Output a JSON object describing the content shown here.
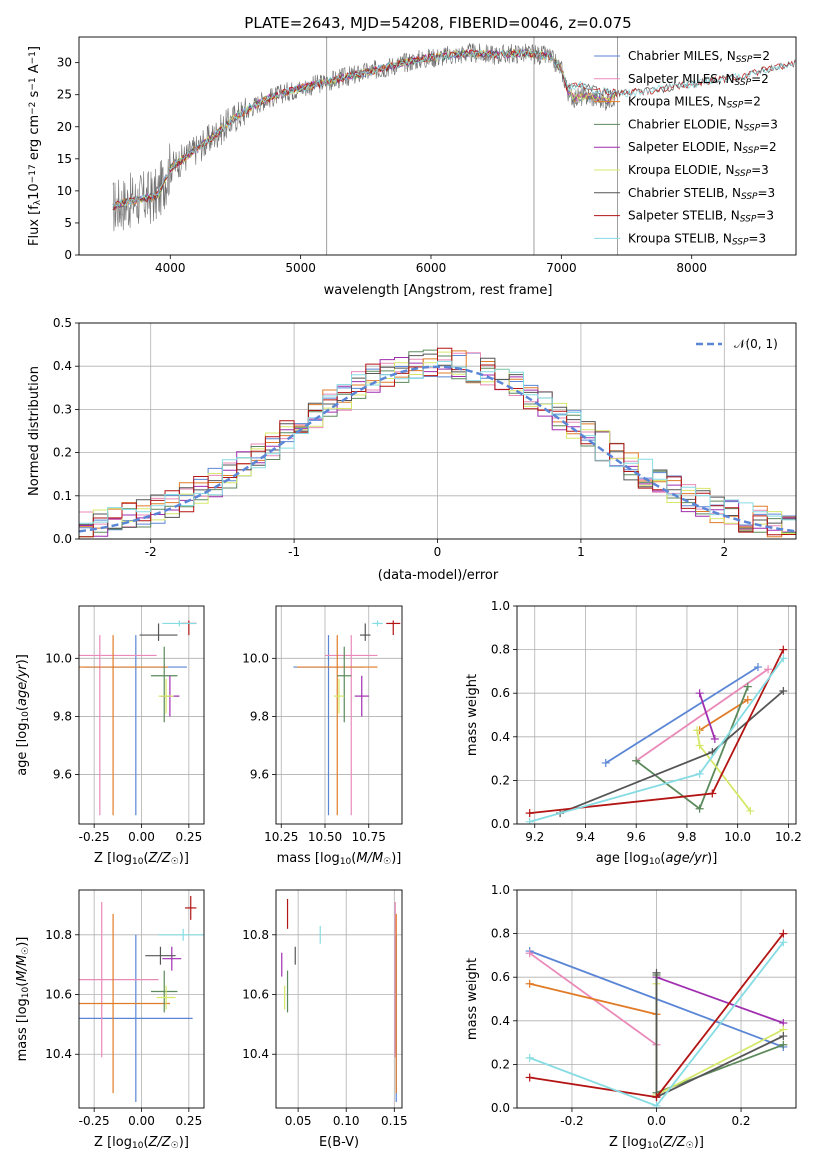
{
  "figure": {
    "title": "PLATE=2643, MJD=54208, FIBERID=0046, z=0.075",
    "colors": {
      "chabrier_miles": "#5b86d6",
      "salpeter_miles": "#e98ab9",
      "kroupa_miles": "#e07b28",
      "chabrier_elodie": "#5c8a5c",
      "salpeter_elodie": "#a02fb0",
      "kroupa_elodie": "#d6e86a",
      "chabrier_stelib": "#555555",
      "salpeter_stelib": "#b31414",
      "kroupa_stelib": "#86dce3",
      "gaussian": "#5b86d6"
    }
  },
  "legend_top": [
    "Chabrier MILES, N_SSP=2",
    "Salpeter MILES, N_SSP=2",
    "Kroupa MILES, N_SSP=2",
    "Chabrier ELODIE, N_SSP=3",
    "Salpeter ELODIE, N_SSP=2",
    "Kroupa ELODIE, N_SSP=3",
    "Chabrier STELIB, N_SSP=3",
    "Salpeter STELIB, N_SSP=3",
    "Kroupa STELIB, N_SSP=3"
  ],
  "legend_hist": "𝒩(0, 1)",
  "chart_data": [
    {
      "type": "line",
      "title": "PLATE=2643, MJD=54208, FIBERID=0046, z=0.075",
      "xlabel": "wavelength [Angstrom, rest frame]",
      "ylabel": "Flux [f_λ 10^-17 erg cm^-2 s^-1 A^-1]",
      "xlim": [
        3300,
        8800
      ],
      "ylim": [
        0,
        34
      ],
      "xticks": [
        4000,
        5000,
        6000,
        7000,
        8000
      ],
      "yticks": [
        0,
        5,
        10,
        15,
        20,
        25,
        30
      ],
      "spectrum_anchors": {
        "x": [
          3560,
          3650,
          3800,
          3900,
          4000,
          4100,
          4200,
          4300,
          4500,
          4700,
          4900,
          5100,
          5300,
          5500,
          5700,
          5900,
          6100,
          6300,
          6500,
          6700,
          6900,
          7000,
          7050,
          7100,
          7200,
          7350,
          7420
        ],
        "y": [
          7.5,
          8.2,
          8.8,
          9.2,
          13.5,
          15.0,
          16.5,
          18.0,
          21.5,
          24.0,
          25.5,
          26.5,
          27.5,
          28.5,
          29.5,
          30.5,
          31.0,
          31.5,
          31.2,
          31.5,
          31.0,
          29.0,
          25.5,
          24.5,
          24.8,
          24.0,
          25.0
        ]
      },
      "model_tail_upper": {
        "x": [
          7050,
          7150,
          7300,
          7500,
          7800,
          8100,
          8400,
          8800
        ],
        "y": [
          26.0,
          26.5,
          25.5,
          25.2,
          26.0,
          27.0,
          28.0,
          30.0
        ]
      },
      "vertical_spikes": [
        5200,
        6790,
        7430
      ],
      "series": [
        "Chabrier MILES, N_SSP=2",
        "Salpeter MILES, N_SSP=2",
        "Kroupa MILES, N_SSP=2",
        "Chabrier ELODIE, N_SSP=3",
        "Salpeter ELODIE, N_SSP=2",
        "Kroupa ELODIE, N_SSP=3",
        "Chabrier STELIB, N_SSP=3",
        "Salpeter STELIB, N_SSP=3",
        "Kroupa STELIB, N_SSP=3"
      ]
    },
    {
      "type": "bar",
      "xlabel": "(data-model)/error",
      "ylabel": "Normed distribution",
      "xlim": [
        -2.5,
        2.5
      ],
      "ylim": [
        0,
        0.5
      ],
      "xticks": [
        -2,
        -1,
        0,
        1,
        2
      ],
      "yticks": [
        0.0,
        0.1,
        0.2,
        0.3,
        0.4,
        0.5
      ],
      "bin_width": 0.1,
      "gaussian": {
        "mu": 0,
        "sigma": 1,
        "label": "𝒩(0, 1)"
      },
      "histograms": "nine step histograms (one per model) scattering around N(0,1)"
    },
    {
      "type": "scatter",
      "xlabel": "Z [log10(Z/Z☉)]",
      "ylabel": "age  [log10(age/yr)]",
      "xlim": [
        -0.33,
        0.33
      ],
      "ylim": [
        9.43,
        10.18
      ],
      "xticks": [
        -0.25,
        0.0,
        0.25
      ],
      "yticks": [
        9.6,
        9.8,
        10.0
      ],
      "points": [
        {
          "model": "Chabrier MILES",
          "x": -0.03,
          "y": 9.97,
          "xerr": 0.27,
          "yerr_lo": 0.51,
          "yerr_hi": 0.11
        },
        {
          "model": "Salpeter MILES",
          "x": -0.22,
          "y": 10.01,
          "xerr": 0.3,
          "yerr_lo": 0.55,
          "yerr_hi": 0.07
        },
        {
          "model": "Kroupa MILES",
          "x": -0.15,
          "y": 9.97,
          "xerr": 0.29,
          "yerr_lo": 0.51,
          "yerr_hi": 0.11
        },
        {
          "model": "Chabrier ELODIE",
          "x": 0.12,
          "y": 9.94,
          "xerr": 0.07,
          "yerr_lo": 0.16,
          "yerr_hi": 0.1
        },
        {
          "model": "Salpeter ELODIE",
          "x": 0.15,
          "y": 9.87,
          "xerr": 0.05,
          "yerr_lo": 0.07,
          "yerr_hi": 0.07
        },
        {
          "model": "Kroupa ELODIE",
          "x": 0.13,
          "y": 9.87,
          "xerr": 0.04,
          "yerr_lo": 0.06,
          "yerr_hi": 0.06
        },
        {
          "model": "Chabrier STELIB",
          "x": 0.09,
          "y": 10.08,
          "xerr": 0.1,
          "yerr_lo": 0.02,
          "yerr_hi": 0.04
        },
        {
          "model": "Salpeter STELIB",
          "x": 0.25,
          "y": 10.12,
          "xerr": 0.04,
          "yerr_lo": 0.04,
          "yerr_hi": 0.01
        },
        {
          "model": "Kroupa STELIB",
          "x": 0.2,
          "y": 10.12,
          "xerr": 0.09,
          "yerr_lo": 0.01,
          "yerr_hi": 0.01
        }
      ]
    },
    {
      "type": "scatter",
      "xlabel": "mass [log10(M/M☉)]",
      "xlim": [
        10.22,
        10.94
      ],
      "ylim": [
        9.43,
        10.18
      ],
      "xticks": [
        10.25,
        10.5,
        10.75
      ],
      "yticks": [
        9.6,
        9.8,
        10.0
      ],
      "points": [
        {
          "model": "Chabrier MILES",
          "x": 10.52,
          "y": 9.97,
          "xerr": 0.2,
          "yerr_lo": 0.51,
          "yerr_hi": 0.11
        },
        {
          "model": "Salpeter MILES",
          "x": 10.65,
          "y": 10.01,
          "xerr": 0.15,
          "yerr_lo": 0.55,
          "yerr_hi": 0.07
        },
        {
          "model": "Kroupa MILES",
          "x": 10.57,
          "y": 9.97,
          "xerr": 0.23,
          "yerr_lo": 0.51,
          "yerr_hi": 0.11
        },
        {
          "model": "Chabrier ELODIE",
          "x": 10.61,
          "y": 9.94,
          "xerr": 0.04,
          "yerr_lo": 0.16,
          "yerr_hi": 0.1
        },
        {
          "model": "Salpeter ELODIE",
          "x": 10.71,
          "y": 9.87,
          "xerr": 0.04,
          "yerr_lo": 0.07,
          "yerr_hi": 0.07
        },
        {
          "model": "Kroupa ELODIE",
          "x": 10.58,
          "y": 9.87,
          "xerr": 0.03,
          "yerr_lo": 0.06,
          "yerr_hi": 0.06
        },
        {
          "model": "Chabrier STELIB",
          "x": 10.73,
          "y": 10.08,
          "xerr": 0.03,
          "yerr_lo": 0.02,
          "yerr_hi": 0.04
        },
        {
          "model": "Salpeter STELIB",
          "x": 10.89,
          "y": 10.12,
          "xerr": 0.04,
          "yerr_lo": 0.04,
          "yerr_hi": 0.01
        },
        {
          "model": "Kroupa STELIB",
          "x": 10.8,
          "y": 10.12,
          "xerr": 0.03,
          "yerr_lo": 0.01,
          "yerr_hi": 0.01
        }
      ]
    },
    {
      "type": "line",
      "xlabel": "age  [log10(age/yr)]",
      "ylabel": "mass weight",
      "xlim": [
        9.13,
        10.23
      ],
      "ylim": [
        0,
        1
      ],
      "xticks": [
        9.2,
        9.4,
        9.6,
        9.8,
        10.0,
        10.2
      ],
      "yticks": [
        0.0,
        0.2,
        0.4,
        0.6,
        0.8,
        1.0
      ],
      "series": [
        {
          "model": "Chabrier MILES",
          "x": [
            9.48,
            10.08
          ],
          "y": [
            0.28,
            0.72
          ]
        },
        {
          "model": "Salpeter MILES",
          "x": [
            9.6,
            10.12
          ],
          "y": [
            0.29,
            0.71
          ]
        },
        {
          "model": "Kroupa MILES",
          "x": [
            9.85,
            10.04
          ],
          "y": [
            0.43,
            0.57
          ]
        },
        {
          "model": "Chabrier ELODIE",
          "x": [
            9.6,
            9.85,
            10.04
          ],
          "y": [
            0.29,
            0.07,
            0.63
          ]
        },
        {
          "model": "Salpeter ELODIE",
          "x": [
            9.85,
            9.91
          ],
          "y": [
            0.6,
            0.39
          ]
        },
        {
          "model": "Kroupa ELODIE",
          "x": [
            9.84,
            9.85,
            10.05
          ],
          "y": [
            0.43,
            0.36,
            0.06
          ]
        },
        {
          "model": "Chabrier STELIB",
          "x": [
            9.3,
            9.9,
            10.18
          ],
          "y": [
            0.05,
            0.33,
            0.61
          ]
        },
        {
          "model": "Salpeter STELIB",
          "x": [
            9.18,
            9.9,
            10.18
          ],
          "y": [
            0.05,
            0.14,
            0.8
          ]
        },
        {
          "model": "Kroupa STELIB",
          "x": [
            9.18,
            9.85,
            10.18
          ],
          "y": [
            0.01,
            0.23,
            0.76
          ]
        }
      ]
    },
    {
      "type": "scatter",
      "xlabel": "Z [log10(Z/Z☉)]",
      "ylabel": "mass [log10(M/M☉)]",
      "xlim": [
        -0.33,
        0.33
      ],
      "ylim": [
        10.22,
        10.95
      ],
      "xticks": [
        -0.25,
        0.0,
        0.25
      ],
      "yticks": [
        10.4,
        10.6,
        10.8
      ],
      "points": [
        {
          "model": "Chabrier MILES",
          "x": -0.03,
          "y": 10.52,
          "xerr": 0.3,
          "yerr": 0.28
        },
        {
          "model": "Salpeter MILES",
          "x": -0.21,
          "y": 10.65,
          "xerr": 0.3,
          "yerr": 0.26
        },
        {
          "model": "Kroupa MILES",
          "x": -0.15,
          "y": 10.57,
          "xerr": 0.3,
          "yerr": 0.3
        },
        {
          "model": "Chabrier ELODIE",
          "x": 0.12,
          "y": 10.61,
          "xerr": 0.07,
          "yerr": 0.07
        },
        {
          "model": "Salpeter ELODIE",
          "x": 0.16,
          "y": 10.72,
          "xerr": 0.05,
          "yerr": 0.04
        },
        {
          "model": "Kroupa ELODIE",
          "x": 0.13,
          "y": 10.59,
          "xerr": 0.05,
          "yerr": 0.04
        },
        {
          "model": "Chabrier STELIB",
          "x": 0.1,
          "y": 10.73,
          "xerr": 0.08,
          "yerr": 0.03
        },
        {
          "model": "Salpeter STELIB",
          "x": 0.26,
          "y": 10.89,
          "xerr": 0.03,
          "yerr": 0.04
        },
        {
          "model": "Kroupa STELIB",
          "x": 0.22,
          "y": 10.8,
          "xerr": 0.13,
          "yerr": 0.02
        }
      ]
    },
    {
      "type": "scatter",
      "xlabel": "E(B-V)",
      "xlim": [
        0.027,
        0.158
      ],
      "ylim": [
        10.22,
        10.95
      ],
      "xticks": [
        0.05,
        0.1,
        0.15
      ],
      "yticks": [
        10.4,
        10.6,
        10.8
      ],
      "points": [
        {
          "model": "Chabrier MILES",
          "x": 0.152,
          "y": 10.52,
          "yerr": 0.28
        },
        {
          "model": "Salpeter MILES",
          "x": 0.151,
          "y": 10.65,
          "yerr": 0.26
        },
        {
          "model": "Kroupa MILES",
          "x": 0.152,
          "y": 10.57,
          "yerr": 0.3
        },
        {
          "model": "Chabrier ELODIE",
          "x": 0.039,
          "y": 10.61,
          "yerr": 0.07
        },
        {
          "model": "Salpeter ELODIE",
          "x": 0.033,
          "y": 10.7,
          "yerr": 0.04
        },
        {
          "model": "Kroupa ELODIE",
          "x": 0.036,
          "y": 10.59,
          "yerr": 0.04
        },
        {
          "model": "Chabrier STELIB",
          "x": 0.047,
          "y": 10.73,
          "yerr": 0.03
        },
        {
          "model": "Salpeter STELIB",
          "x": 0.039,
          "y": 10.87,
          "yerr": 0.05
        },
        {
          "model": "Kroupa STELIB",
          "x": 0.073,
          "y": 10.8,
          "yerr": 0.03
        }
      ]
    },
    {
      "type": "line",
      "xlabel": "Z [log10(Z/Z☉)]",
      "ylabel": "mass weight",
      "xlim": [
        -0.33,
        0.33
      ],
      "ylim": [
        0,
        1
      ],
      "xticks": [
        -0.2,
        0.0,
        0.2
      ],
      "yticks": [
        0.0,
        0.2,
        0.4,
        0.6,
        0.8,
        1.0
      ],
      "series": [
        {
          "model": "Chabrier MILES",
          "x": [
            -0.3,
            0.3
          ],
          "y": [
            0.72,
            0.28
          ]
        },
        {
          "model": "Salpeter MILES",
          "x": [
            -0.3,
            0.0
          ],
          "y": [
            0.71,
            0.29
          ]
        },
        {
          "model": "Kroupa MILES",
          "x": [
            -0.3,
            0.0
          ],
          "y": [
            0.57,
            0.43
          ]
        },
        {
          "model": "Chabrier ELODIE",
          "x": [
            0.0,
            0.0,
            0.3
          ],
          "y": [
            0.61,
            0.07,
            0.29
          ]
        },
        {
          "model": "Salpeter ELODIE",
          "x": [
            0.0,
            0.3
          ],
          "y": [
            0.6,
            0.39
          ]
        },
        {
          "model": "Kroupa ELODIE",
          "x": [
            0.0,
            0.0,
            0.3
          ],
          "y": [
            0.57,
            0.06,
            0.36
          ]
        },
        {
          "model": "Chabrier STELIB",
          "x": [
            0.0,
            0.0,
            0.3
          ],
          "y": [
            0.62,
            0.05,
            0.33
          ]
        },
        {
          "model": "Salpeter STELIB",
          "x": [
            -0.3,
            0.0,
            0.3
          ],
          "y": [
            0.14,
            0.05,
            0.8
          ]
        },
        {
          "model": "Kroupa STELIB",
          "x": [
            -0.3,
            0.0,
            0.3
          ],
          "y": [
            0.23,
            0.01,
            0.76
          ]
        }
      ]
    }
  ]
}
